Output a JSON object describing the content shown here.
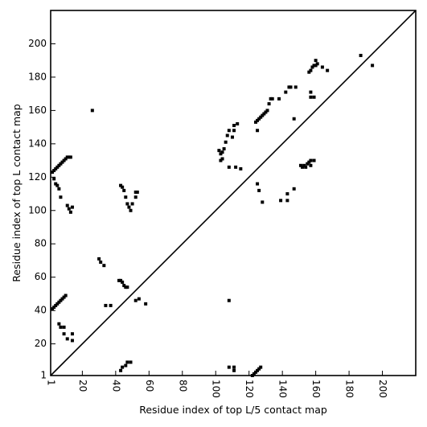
{
  "chart_data": {
    "type": "scatter",
    "title": "",
    "xlabel": "Residue index of top L/5 contact map",
    "ylabel": "Residue index of top L contact map",
    "xlim": [
      1,
      220
    ],
    "ylim": [
      1,
      220
    ],
    "x_ticks": [
      1,
      20,
      40,
      60,
      80,
      100,
      120,
      140,
      160,
      180,
      200
    ],
    "y_ticks": [
      1,
      20,
      40,
      60,
      80,
      100,
      120,
      140,
      160,
      180,
      200
    ],
    "x_tick_rotation": -90,
    "grid": false,
    "legend": "none",
    "marker": "square",
    "marker_color": "#000000",
    "diagonal_line": true,
    "upper_triangle_points": [
      [
        2,
        123
      ],
      [
        3,
        124
      ],
      [
        4,
        125
      ],
      [
        5,
        126
      ],
      [
        6,
        127
      ],
      [
        7,
        128
      ],
      [
        8,
        129
      ],
      [
        9,
        130
      ],
      [
        10,
        131
      ],
      [
        11,
        132
      ],
      [
        12,
        132
      ],
      [
        13,
        132
      ],
      [
        3,
        119
      ],
      [
        4,
        116
      ],
      [
        5,
        115
      ],
      [
        6,
        113
      ],
      [
        7,
        108
      ],
      [
        11,
        103
      ],
      [
        12,
        101
      ],
      [
        13,
        99
      ],
      [
        14,
        102
      ],
      [
        26,
        160
      ],
      [
        30,
        71
      ],
      [
        31,
        69
      ],
      [
        33,
        67
      ],
      [
        43,
        115
      ],
      [
        44,
        114
      ],
      [
        45,
        112
      ],
      [
        46,
        108
      ],
      [
        47,
        104
      ],
      [
        48,
        102
      ],
      [
        49,
        100
      ],
      [
        50,
        104
      ],
      [
        52,
        108
      ],
      [
        52,
        111
      ],
      [
        53,
        111
      ],
      [
        102,
        136
      ],
      [
        103,
        134
      ],
      [
        103,
        130
      ],
      [
        104,
        135
      ],
      [
        104,
        131
      ],
      [
        105,
        137
      ],
      [
        106,
        141
      ],
      [
        107,
        145
      ],
      [
        108,
        148
      ],
      [
        108,
        126
      ],
      [
        110,
        144
      ],
      [
        111,
        148
      ],
      [
        111,
        151
      ],
      [
        112,
        126
      ],
      [
        113,
        152
      ],
      [
        115,
        125
      ],
      [
        124,
        153
      ],
      [
        125,
        154
      ],
      [
        125,
        148
      ],
      [
        126,
        155
      ],
      [
        127,
        156
      ],
      [
        128,
        157
      ],
      [
        129,
        158
      ],
      [
        130,
        159
      ],
      [
        131,
        160
      ],
      [
        132,
        164
      ],
      [
        133,
        167
      ],
      [
        134,
        167
      ],
      [
        138,
        167
      ],
      [
        142,
        171
      ],
      [
        144,
        174
      ],
      [
        145,
        174
      ],
      [
        148,
        174
      ],
      [
        147,
        155
      ],
      [
        156,
        183
      ],
      [
        157,
        184
      ],
      [
        158,
        186
      ],
      [
        159,
        187
      ],
      [
        160,
        187
      ],
      [
        160,
        190
      ],
      [
        157,
        171
      ],
      [
        157,
        168
      ],
      [
        159,
        168
      ],
      [
        161,
        188
      ],
      [
        164,
        186
      ],
      [
        167,
        184
      ],
      [
        187,
        193
      ]
    ],
    "lower_triangle_points": [
      [
        2,
        41
      ],
      [
        3,
        42
      ],
      [
        4,
        43
      ],
      [
        5,
        44
      ],
      [
        6,
        45
      ],
      [
        7,
        46
      ],
      [
        8,
        47
      ],
      [
        9,
        48
      ],
      [
        10,
        49
      ],
      [
        6,
        32
      ],
      [
        7,
        30
      ],
      [
        9,
        30
      ],
      [
        9,
        26
      ],
      [
        11,
        23
      ],
      [
        14,
        22
      ],
      [
        14,
        26
      ],
      [
        34,
        43
      ],
      [
        37,
        43
      ],
      [
        42,
        58
      ],
      [
        43,
        58
      ],
      [
        44,
        57
      ],
      [
        45,
        55
      ],
      [
        46,
        54
      ],
      [
        47,
        54
      ],
      [
        52,
        46
      ],
      [
        54,
        47
      ],
      [
        58,
        44
      ],
      [
        43,
        4
      ],
      [
        44,
        6
      ],
      [
        46,
        7
      ],
      [
        47,
        9
      ],
      [
        49,
        9
      ],
      [
        108,
        46
      ],
      [
        108,
        6
      ],
      [
        111,
        6
      ],
      [
        111,
        4
      ],
      [
        122,
        1
      ],
      [
        123,
        2
      ],
      [
        124,
        3
      ],
      [
        125,
        4
      ],
      [
        126,
        5
      ],
      [
        127,
        6
      ],
      [
        125,
        116
      ],
      [
        126,
        112
      ],
      [
        128,
        105
      ],
      [
        139,
        106
      ],
      [
        143,
        106
      ],
      [
        143,
        110
      ],
      [
        147,
        113
      ],
      [
        151,
        127
      ],
      [
        152,
        126
      ],
      [
        153,
        127
      ],
      [
        154,
        126
      ],
      [
        155,
        128
      ],
      [
        156,
        129
      ],
      [
        157,
        127
      ],
      [
        157,
        130
      ],
      [
        159,
        130
      ],
      [
        194,
        187
      ]
    ]
  }
}
